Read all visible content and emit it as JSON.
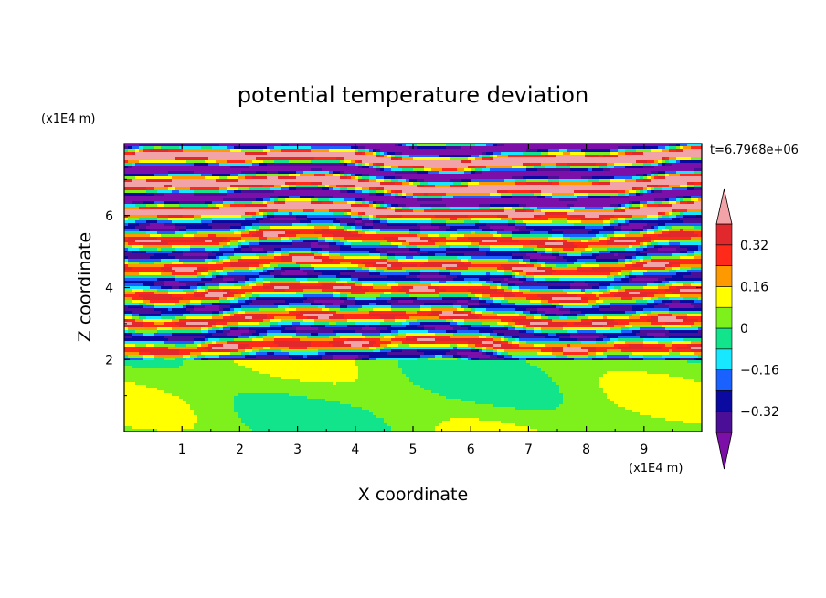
{
  "chart_data": {
    "type": "heatmap",
    "title": "potential temperature deviation",
    "xlabel": "X coordinate",
    "ylabel": "Z coordinate",
    "x_unit": "(x1E4 m)",
    "y_unit": "(x1E4 m)",
    "time_label": "t=6.7968e+06",
    "xlim": [
      0,
      10
    ],
    "ylim": [
      0,
      8
    ],
    "x_ticks": [
      "1",
      "2",
      "3",
      "4",
      "5",
      "6",
      "7",
      "8",
      "9"
    ],
    "y_ticks": [
      "2",
      "4",
      "6"
    ],
    "grid": false,
    "legend": "right colorbar",
    "colorbar": {
      "labels": [
        "0.32",
        "0.16",
        "0",
        "−0.16",
        "−0.32"
      ],
      "label_values": [
        0.32,
        0.16,
        0,
        -0.16,
        -0.32
      ],
      "levels": [
        -0.4,
        -0.32,
        -0.24,
        -0.16,
        -0.08,
        0,
        0.08,
        0.16,
        0.24,
        0.32,
        0.4
      ],
      "colors": [
        "#7b0fa8",
        "#4a0f96",
        "#0a0aa0",
        "#1a62ff",
        "#17e8ff",
        "#12e48c",
        "#7ef01c",
        "#ffff00",
        "#ff9900",
        "#ff2a1a",
        "#e0282d",
        "#f2a3a8"
      ],
      "extend": "both"
    },
    "regions": [
      {
        "z": [
          0,
          2
        ],
        "description": "weak deviation, values near 0 to 0.08"
      },
      {
        "z": [
          2,
          6
        ],
        "description": "alternating positive and negative layers, ±0.4"
      },
      {
        "z": [
          6,
          8
        ],
        "description": "strong layers, below -0.4 and above 0.4"
      }
    ]
  }
}
